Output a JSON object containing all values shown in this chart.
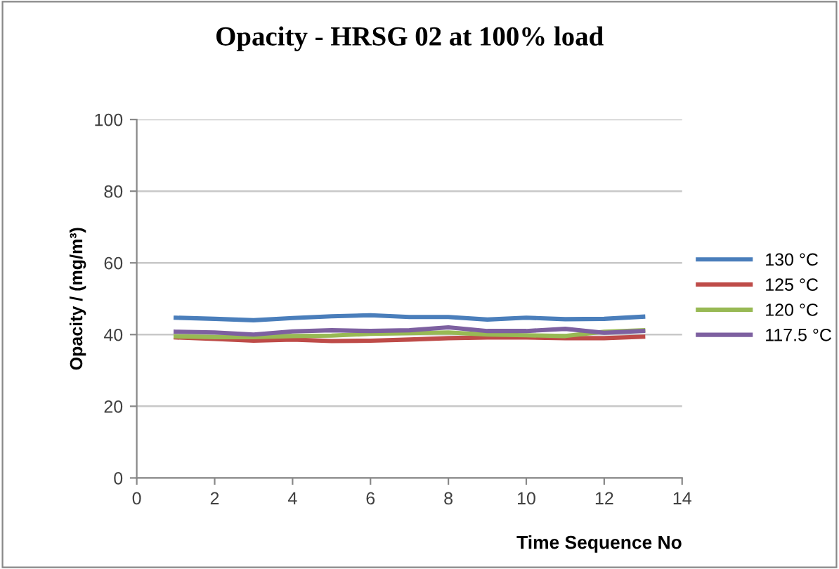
{
  "chart_data": {
    "type": "line",
    "title": "Opacity - HRSG 02 at 100% load",
    "xlabel": "Time Sequence No",
    "ylabel": "Opacity / (mg/m³)",
    "x": [
      1,
      2,
      3,
      4,
      5,
      6,
      7,
      8,
      9,
      10,
      11,
      12,
      13
    ],
    "xlim": [
      0,
      14
    ],
    "xticks": [
      0,
      2,
      4,
      6,
      8,
      10,
      12,
      14
    ],
    "ylim": [
      0,
      100
    ],
    "yticks": [
      0,
      20,
      40,
      60,
      80,
      100
    ],
    "grid": "y",
    "legend": "right",
    "marker": "none",
    "line_style": "solid",
    "series": [
      {
        "name": "130 °C",
        "color": "#4a7ebb",
        "values": [
          44.7,
          44.4,
          44.0,
          44.6,
          45.1,
          45.4,
          44.9,
          44.9,
          44.2,
          44.7,
          44.3,
          44.4,
          45.0
        ]
      },
      {
        "name": "125 °C",
        "color": "#be4b48",
        "values": [
          39.2,
          38.8,
          38.3,
          38.6,
          38.2,
          38.3,
          38.6,
          39.0,
          39.2,
          39.2,
          39.0,
          39.0,
          39.4
        ]
      },
      {
        "name": "120 °C",
        "color": "#98b954",
        "values": [
          39.5,
          39.3,
          39.3,
          39.6,
          39.7,
          40.2,
          40.4,
          40.6,
          40.0,
          39.8,
          39.6,
          40.8,
          41.2
        ]
      },
      {
        "name": "117.5 °C",
        "color": "#7d60a0",
        "values": [
          40.8,
          40.6,
          40.0,
          40.9,
          41.2,
          41.0,
          41.2,
          42.0,
          41.0,
          41.0,
          41.6,
          40.5,
          41.0
        ]
      }
    ]
  }
}
